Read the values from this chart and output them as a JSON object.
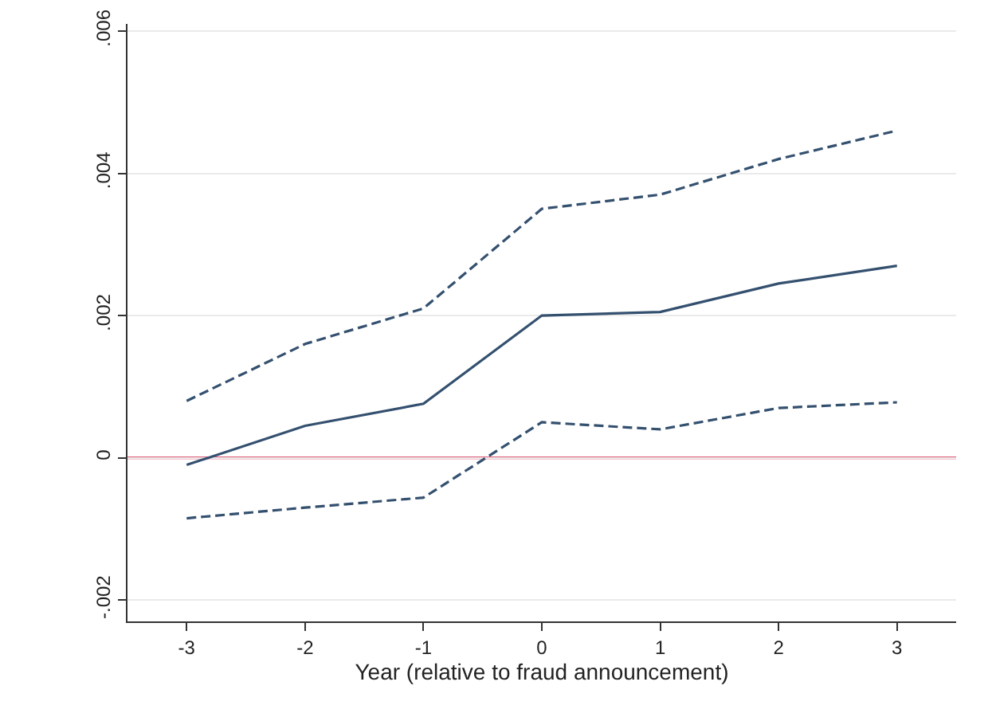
{
  "chart_data": {
    "type": "line",
    "xlabel": "Year (relative to fraud announcement)",
    "x": [
      -3,
      -2,
      -1,
      0,
      1,
      2,
      3
    ],
    "series": [
      {
        "color": "#34506f",
        "line_style": "dashed",
        "values": [
          0.0008,
          0.0016,
          0.0021,
          0.0035,
          0.0037,
          0.0042,
          0.0046
        ]
      },
      {
        "color": "#34506f",
        "line_style": "solid",
        "values": [
          -0.0001,
          0.00045,
          0.00076,
          0.002,
          0.00205,
          0.00245,
          0.0027
        ]
      },
      {
        "color": "#34506f",
        "line_style": "dashed",
        "values": [
          -0.00085,
          -0.0007,
          -0.00056,
          0.0005,
          0.0004,
          0.0007,
          0.00078
        ]
      }
    ],
    "xlim": [
      -3.5,
      3.5
    ],
    "xticks": [
      -3,
      -2,
      -1,
      0,
      1,
      2,
      3
    ],
    "ylim": [
      -0.0023,
      0.0061
    ],
    "yticks": [
      {
        "value": -0.002,
        "label": "-.002"
      },
      {
        "value": 0,
        "label": "0"
      },
      {
        "value": 0.002,
        "label": ".002"
      },
      {
        "value": 0.004,
        "label": ".004"
      },
      {
        "value": 0.006,
        "label": ".006"
      }
    ],
    "ref_lines": [
      {
        "axis": "y",
        "value": 0,
        "color": "#d62246",
        "line_style": "solid"
      }
    ],
    "grid": "y",
    "marker": "none"
  }
}
